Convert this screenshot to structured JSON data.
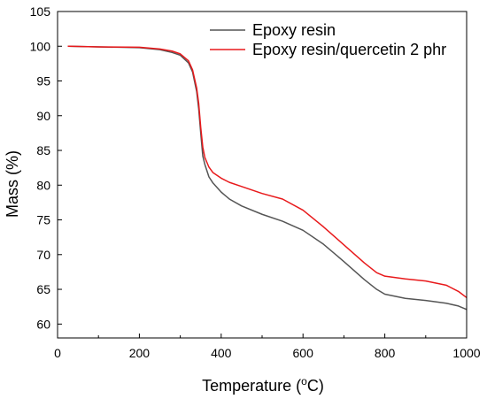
{
  "chart_data": {
    "type": "line",
    "xlabel": "Temperature (",
    "xlabel_unit": "oC",
    "xlabel_close": ")",
    "ylabel": "Mass (%)",
    "xlim": [
      0,
      1000
    ],
    "ylim": [
      58,
      105
    ],
    "xticks": [
      0,
      200,
      400,
      600,
      800,
      1000
    ],
    "yticks": [
      60,
      65,
      70,
      75,
      80,
      85,
      90,
      95,
      100,
      105
    ],
    "grid": false,
    "legend_position": "top-right",
    "series": [
      {
        "name": "Epoxy resin",
        "color": "#555555",
        "points": [
          [
            25,
            100.0
          ],
          [
            100,
            99.9
          ],
          [
            200,
            99.8
          ],
          [
            250,
            99.5
          ],
          [
            280,
            99.1
          ],
          [
            300,
            98.7
          ],
          [
            320,
            97.6
          ],
          [
            330,
            96.3
          ],
          [
            340,
            93.5
          ],
          [
            345,
            91.0
          ],
          [
            350,
            87.5
          ],
          [
            355,
            84.2
          ],
          [
            360,
            83.0
          ],
          [
            370,
            81.2
          ],
          [
            380,
            80.3
          ],
          [
            400,
            79.0
          ],
          [
            420,
            78.0
          ],
          [
            450,
            77.0
          ],
          [
            500,
            75.8
          ],
          [
            550,
            74.8
          ],
          [
            600,
            73.5
          ],
          [
            650,
            71.5
          ],
          [
            700,
            69.0
          ],
          [
            750,
            66.4
          ],
          [
            780,
            65.0
          ],
          [
            800,
            64.3
          ],
          [
            850,
            63.7
          ],
          [
            900,
            63.4
          ],
          [
            950,
            63.0
          ],
          [
            980,
            62.6
          ],
          [
            1000,
            62.1
          ]
        ]
      },
      {
        "name": "Epoxy resin/quercetin 2 phr",
        "color": "#e8191b",
        "points": [
          [
            25,
            100.0
          ],
          [
            100,
            99.9
          ],
          [
            200,
            99.85
          ],
          [
            250,
            99.6
          ],
          [
            280,
            99.3
          ],
          [
            300,
            98.9
          ],
          [
            320,
            97.9
          ],
          [
            330,
            96.6
          ],
          [
            340,
            94.0
          ],
          [
            345,
            91.8
          ],
          [
            350,
            88.3
          ],
          [
            355,
            85.5
          ],
          [
            360,
            84.0
          ],
          [
            370,
            82.6
          ],
          [
            380,
            81.8
          ],
          [
            400,
            81.0
          ],
          [
            420,
            80.4
          ],
          [
            450,
            79.8
          ],
          [
            500,
            78.8
          ],
          [
            550,
            78.0
          ],
          [
            600,
            76.4
          ],
          [
            650,
            74.0
          ],
          [
            700,
            71.4
          ],
          [
            750,
            68.8
          ],
          [
            780,
            67.4
          ],
          [
            800,
            66.9
          ],
          [
            850,
            66.5
          ],
          [
            900,
            66.2
          ],
          [
            950,
            65.6
          ],
          [
            980,
            64.7
          ],
          [
            1000,
            63.8
          ]
        ]
      }
    ]
  }
}
